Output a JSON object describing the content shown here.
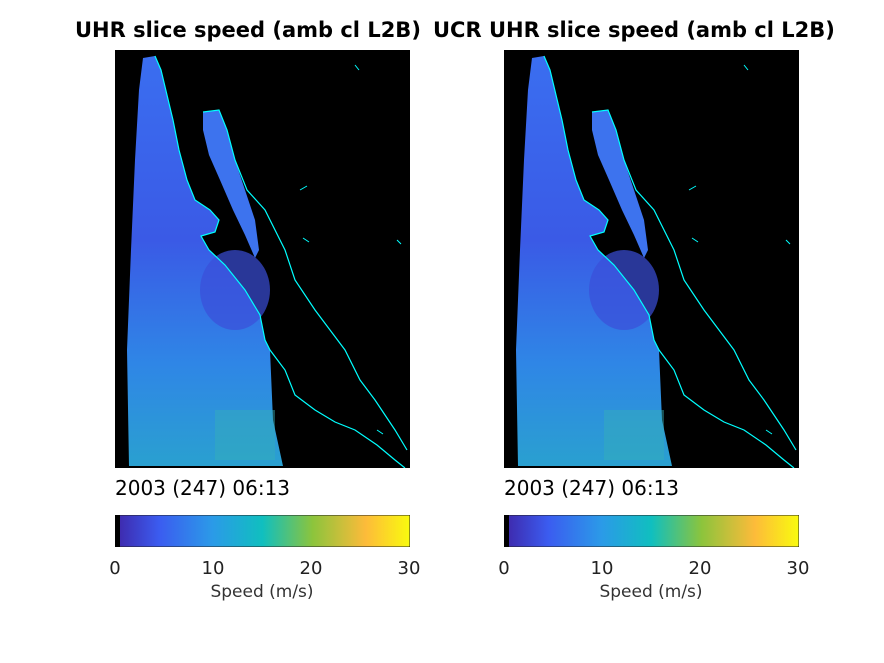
{
  "panels": [
    {
      "title": "UHR slice speed (amb cl L2B)",
      "timestamp": "2003 (247) 06:13",
      "colorbar": {
        "label": "Speed (m/s)",
        "ticks": [
          "0",
          "10",
          "20",
          "30"
        ]
      }
    },
    {
      "title": "UCR UHR slice speed (amb cl L2B)",
      "timestamp": "2003 (247) 06:13",
      "colorbar": {
        "label": "Speed (m/s)",
        "ticks": [
          "0",
          "10",
          "20",
          "30"
        ]
      }
    }
  ],
  "chart_data": [
    {
      "type": "heatmap",
      "title": "UHR slice speed (amb cl L2B)",
      "colorbar_label": "Speed (m/s)",
      "clim": [
        0,
        30
      ],
      "colormap": "parula",
      "coastline_color": "#00ffff",
      "background_color": "#000000"
    },
    {
      "type": "heatmap",
      "title": "UCR UHR slice speed (amb cl L2B)",
      "colorbar_label": "Speed (m/s)",
      "clim": [
        0,
        30
      ],
      "colormap": "parula",
      "coastline_color": "#00ffff",
      "background_color": "#000000"
    }
  ]
}
